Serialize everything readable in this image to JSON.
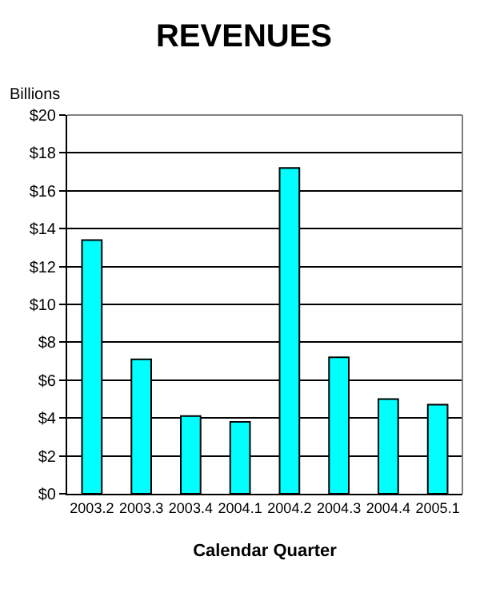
{
  "chart_data": {
    "type": "bar",
    "title": "REVENUES",
    "ylabel": "Billions",
    "xlabel": "Calendar Quarter",
    "categories": [
      "2003.2",
      "2003.3",
      "2003.4",
      "2004.1",
      "2004.2",
      "2004.3",
      "2004.4",
      "2005.1"
    ],
    "values": [
      13.4,
      7.1,
      4.1,
      3.8,
      17.2,
      7.2,
      5.0,
      4.7
    ],
    "color": "#00ffff",
    "ylim": [
      0,
      20
    ],
    "yticks": [
      {
        "value": 0,
        "label": "$0"
      },
      {
        "value": 2,
        "label": "$2"
      },
      {
        "value": 4,
        "label": "$4"
      },
      {
        "value": 6,
        "label": "$6"
      },
      {
        "value": 8,
        "label": "$8"
      },
      {
        "value": 10,
        "label": "$10"
      },
      {
        "value": 12,
        "label": "$12"
      },
      {
        "value": 14,
        "label": "$14"
      },
      {
        "value": 16,
        "label": "$16"
      },
      {
        "value": 18,
        "label": "$18"
      },
      {
        "value": 20,
        "label": "$20"
      }
    ],
    "grid": "y"
  }
}
